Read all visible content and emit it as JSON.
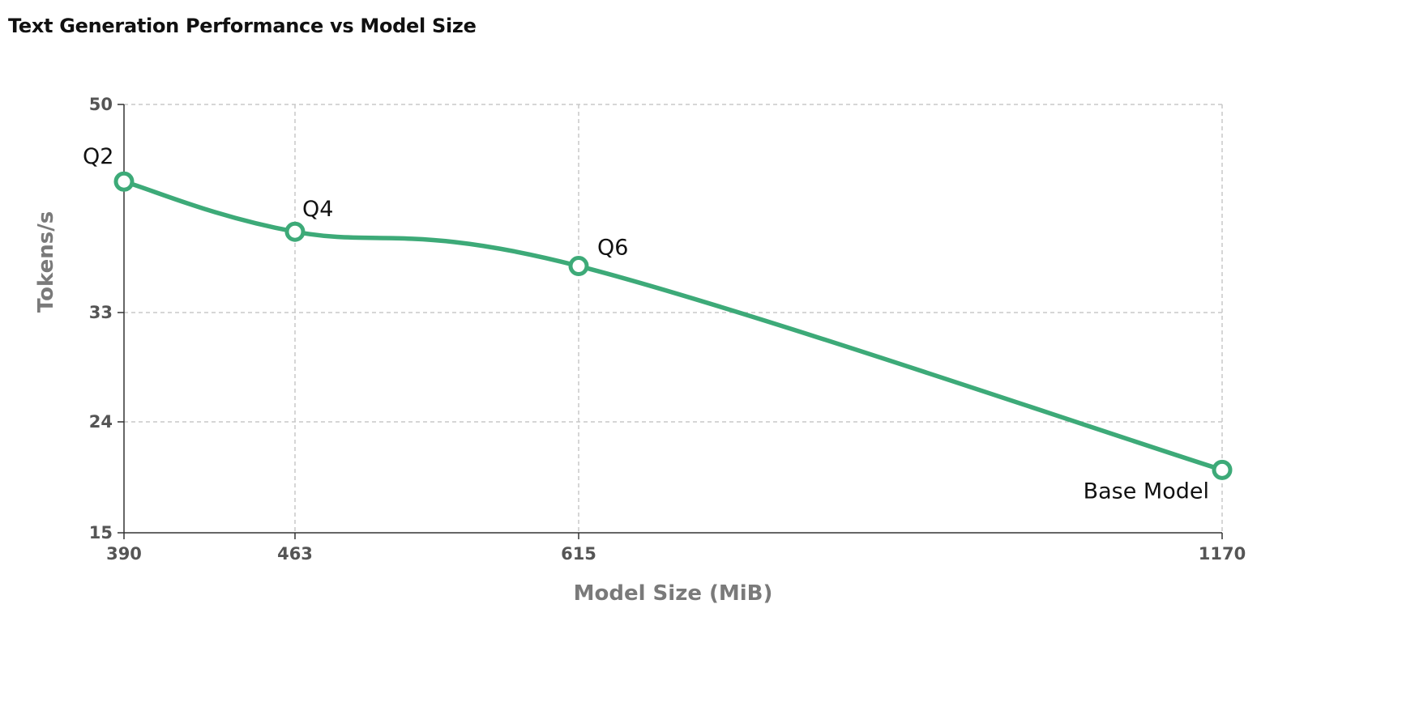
{
  "chart_data": {
    "type": "line",
    "title": "Text Generation Performance vs Model Size",
    "xlabel": "Model Size (MiB)",
    "ylabel": "Tokens/s",
    "x": [
      390,
      463,
      615,
      1170
    ],
    "y": [
      43.7,
      39.6,
      36.8,
      20.1
    ],
    "point_labels": [
      "Q2",
      "Q4",
      "Q6",
      "Base Model"
    ],
    "xticks": [
      390,
      463,
      615,
      1170
    ],
    "yticks": [
      15,
      24,
      33,
      50
    ],
    "xlim": [
      390,
      1170
    ],
    "ylim": [
      15,
      50
    ],
    "grid": true,
    "line_color": "#3daa78",
    "x_scale": "categorical-uneven"
  }
}
